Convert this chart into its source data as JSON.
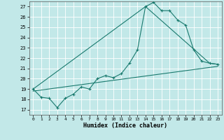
{
  "xlabel": "Humidex (Indice chaleur)",
  "background_color": "#c2e8e8",
  "line_color": "#1a7a6e",
  "grid_color": "#ffffff",
  "xlim": [
    -0.5,
    23.5
  ],
  "ylim": [
    16.5,
    27.5
  ],
  "yticks": [
    17,
    18,
    19,
    20,
    21,
    22,
    23,
    24,
    25,
    26,
    27
  ],
  "xticks": [
    0,
    1,
    2,
    3,
    4,
    5,
    6,
    7,
    8,
    9,
    10,
    11,
    12,
    13,
    14,
    15,
    16,
    17,
    18,
    19,
    20,
    21,
    22,
    23
  ],
  "line1_x": [
    0,
    1,
    2,
    3,
    4,
    5,
    6,
    7,
    8,
    9,
    10,
    11,
    12,
    13,
    14,
    15,
    16,
    17,
    18,
    19,
    20,
    21,
    22,
    23
  ],
  "line1_y": [
    19.0,
    18.2,
    18.1,
    17.2,
    18.1,
    18.5,
    19.2,
    19.0,
    20.0,
    20.3,
    20.1,
    20.5,
    21.5,
    22.8,
    27.0,
    27.4,
    26.6,
    26.6,
    25.7,
    25.2,
    22.8,
    21.7,
    21.5,
    21.4
  ],
  "line2_x": [
    0,
    14,
    22,
    23
  ],
  "line2_y": [
    19.0,
    27.0,
    21.5,
    21.4
  ],
  "line3_x": [
    0,
    23
  ],
  "line3_y": [
    18.8,
    21.2
  ]
}
